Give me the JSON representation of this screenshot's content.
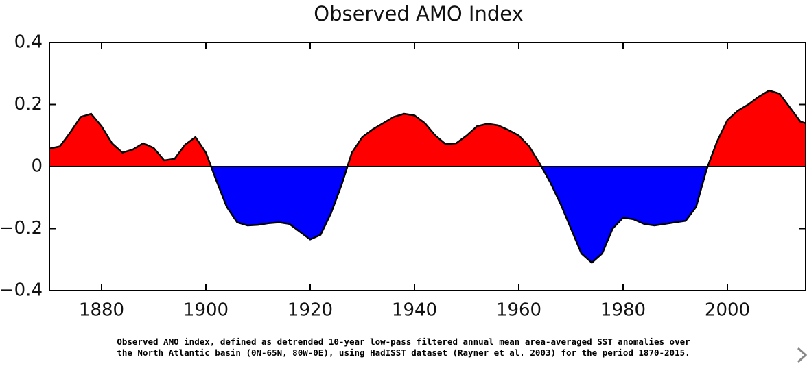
{
  "chart_data": {
    "type": "area",
    "title": "Observed AMO Index",
    "caption": [
      "Observed AMO index, defined as detrended 10-year low-pass filtered annual mean area-averaged SST anomalies over",
      "the North Atlantic basin (0N-65N, 80W-0E), using HadISST dataset (Rayner et al. 2003) for the period 1870-2015."
    ],
    "x": [
      1870,
      1872,
      1874,
      1876,
      1878,
      1880,
      1882,
      1884,
      1886,
      1888,
      1890,
      1892,
      1894,
      1896,
      1898,
      1900,
      1902,
      1904,
      1906,
      1908,
      1910,
      1912,
      1914,
      1916,
      1918,
      1920,
      1922,
      1924,
      1926,
      1928,
      1930,
      1932,
      1934,
      1936,
      1938,
      1940,
      1942,
      1944,
      1946,
      1948,
      1950,
      1952,
      1954,
      1956,
      1958,
      1960,
      1962,
      1964,
      1966,
      1968,
      1970,
      1972,
      1974,
      1976,
      1978,
      1980,
      1982,
      1984,
      1986,
      1988,
      1990,
      1992,
      1994,
      1996,
      1998,
      2000,
      2002,
      2004,
      2006,
      2008,
      2010,
      2012,
      2014,
      2015
    ],
    "values": [
      0.058,
      0.065,
      0.11,
      0.16,
      0.17,
      0.13,
      0.075,
      0.045,
      0.055,
      0.075,
      0.06,
      0.02,
      0.025,
      0.07,
      0.095,
      0.045,
      -0.045,
      -0.13,
      -0.18,
      -0.19,
      -0.188,
      -0.183,
      -0.18,
      -0.185,
      -0.21,
      -0.235,
      -0.22,
      -0.15,
      -0.06,
      0.045,
      0.095,
      0.12,
      0.14,
      0.16,
      0.17,
      0.165,
      0.14,
      0.1,
      0.072,
      0.075,
      0.1,
      0.13,
      0.138,
      0.133,
      0.118,
      0.1,
      0.065,
      0.01,
      -0.05,
      -0.12,
      -0.2,
      -0.28,
      -0.31,
      -0.28,
      -0.2,
      -0.165,
      -0.17,
      -0.185,
      -0.19,
      -0.185,
      -0.18,
      -0.175,
      -0.13,
      -0.01,
      0.08,
      0.15,
      0.18,
      0.2,
      0.225,
      0.245,
      0.235,
      0.19,
      0.145,
      0.14
    ],
    "positive_color": "#ff0000",
    "negative_color": "#0000ff",
    "line_color": "#000000",
    "xlim": [
      1870,
      2015
    ],
    "xticks": [
      1880,
      1900,
      1920,
      1940,
      1960,
      1980,
      2000
    ],
    "ylim": [
      -0.4,
      0.4
    ],
    "yticks": [
      {
        "value": -0.4,
        "label": "−0.4"
      },
      {
        "value": -0.2,
        "label": "−0.2"
      },
      0,
      0.2,
      0.4
    ],
    "zero_line": true
  }
}
